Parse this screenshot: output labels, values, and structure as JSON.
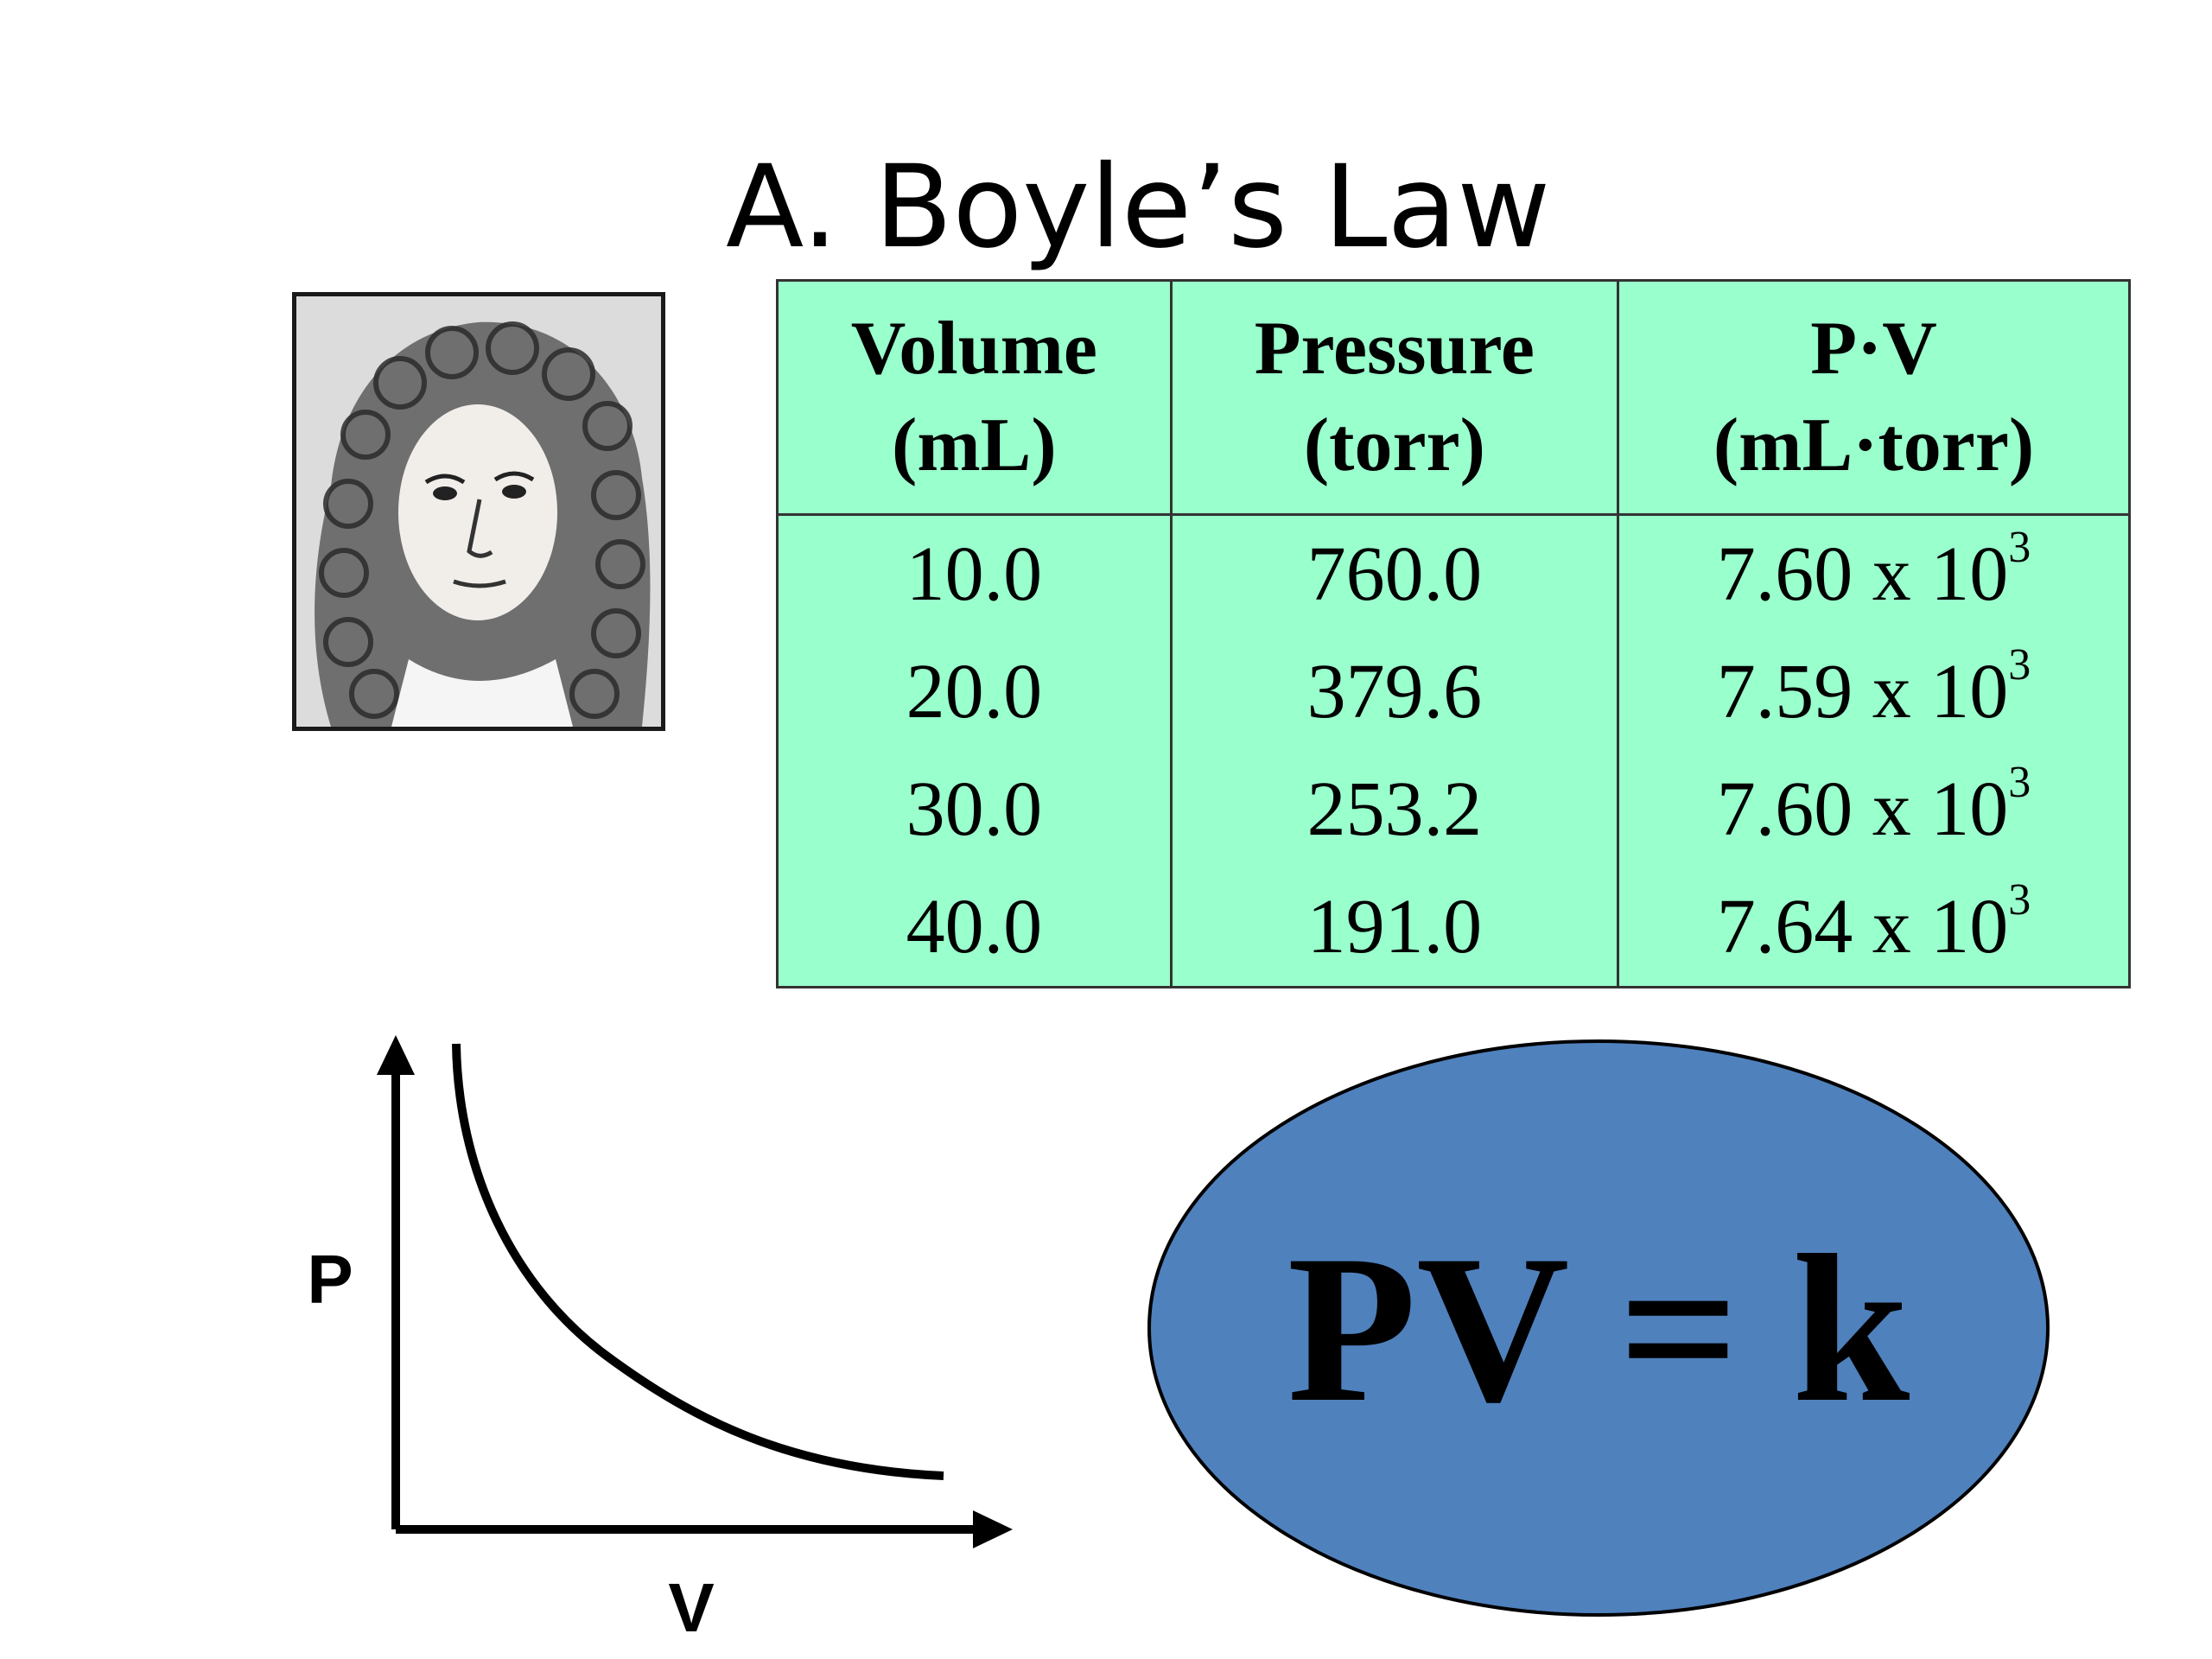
{
  "slide": {
    "title": "A. Boyle’s Law"
  },
  "table": {
    "headers": [
      {
        "line1": "Volume",
        "line2": "(mL)"
      },
      {
        "line1": "Pressure",
        "line2": "(torr)"
      },
      {
        "line1": "P·V",
        "line2": "(mL·torr)"
      }
    ],
    "rows": [
      {
        "volume": "10.0",
        "pressure": "760.0",
        "pv_base": "7.60 x 10",
        "pv_exp": "3"
      },
      {
        "volume": "20.0",
        "pressure": "379.6",
        "pv_base": "7.59 x 10",
        "pv_exp": "3"
      },
      {
        "volume": "30.0",
        "pressure": "253.2",
        "pv_base": "7.60 x 10",
        "pv_exp": "3"
      },
      {
        "volume": "40.0",
        "pressure": "191.0",
        "pv_base": "7.64 x 10",
        "pv_exp": "3"
      }
    ],
    "background_color": "#99ffcc"
  },
  "graph": {
    "y_axis_label": "P",
    "x_axis_label": "V"
  },
  "law": {
    "formula": "PV = k",
    "ellipse_color": "#4f81bd"
  }
}
